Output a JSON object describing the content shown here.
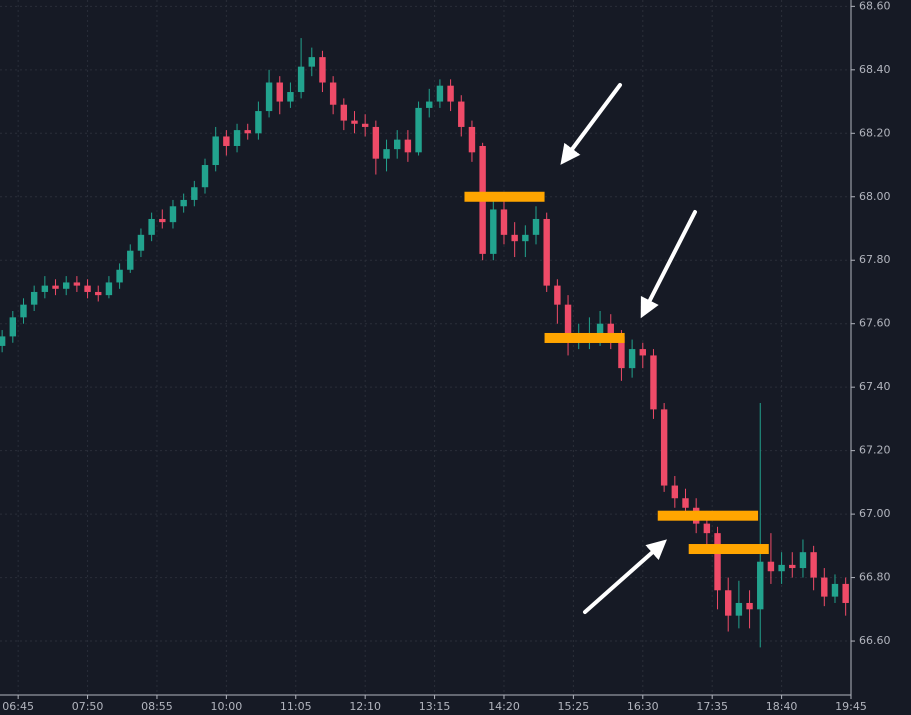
{
  "chart_data": {
    "type": "candlestick",
    "x": [
      "06:30",
      "06:40",
      "06:50",
      "07:00",
      "07:10",
      "07:20",
      "07:30",
      "07:40",
      "07:50",
      "08:00",
      "08:10",
      "08:20",
      "08:30",
      "08:40",
      "08:50",
      "09:00",
      "09:10",
      "09:20",
      "09:30",
      "09:40",
      "09:50",
      "10:00",
      "10:10",
      "10:20",
      "10:30",
      "10:40",
      "10:50",
      "11:00",
      "11:10",
      "11:20",
      "11:30",
      "11:40",
      "11:50",
      "12:00",
      "12:10",
      "12:20",
      "12:30",
      "12:40",
      "12:50",
      "13:00",
      "13:10",
      "13:20",
      "13:30",
      "13:40",
      "13:50",
      "14:00",
      "14:10",
      "14:20",
      "14:30",
      "14:40",
      "14:50",
      "15:00",
      "15:10",
      "15:20",
      "15:30",
      "15:40",
      "15:50",
      "16:00",
      "16:10",
      "16:20",
      "16:30",
      "16:40",
      "16:50",
      "17:00",
      "17:10",
      "17:20",
      "17:30",
      "17:40",
      "17:50",
      "18:00",
      "18:10",
      "18:20",
      "18:30",
      "18:40",
      "18:50",
      "19:00",
      "19:10",
      "19:20",
      "19:30",
      "19:40"
    ],
    "open": [
      67.53,
      67.56,
      67.62,
      67.66,
      67.7,
      67.72,
      67.71,
      67.73,
      67.72,
      67.7,
      67.69,
      67.73,
      67.77,
      67.83,
      67.88,
      67.93,
      67.92,
      67.97,
      67.99,
      68.03,
      68.1,
      68.19,
      68.16,
      68.21,
      68.2,
      68.27,
      68.36,
      68.3,
      68.33,
      68.41,
      68.44,
      68.36,
      68.29,
      68.24,
      68.23,
      68.22,
      68.12,
      68.15,
      68.18,
      68.14,
      68.28,
      68.3,
      68.35,
      68.3,
      68.22,
      68.16,
      67.82,
      67.96,
      67.88,
      67.86,
      67.88,
      67.93,
      67.72,
      67.66,
      67.55,
      67.56,
      67.56,
      67.6,
      67.56,
      67.46,
      67.52,
      67.5,
      67.33,
      67.09,
      67.05,
      67.02,
      66.97,
      66.94,
      66.76,
      66.68,
      66.72,
      66.7,
      66.85,
      66.82,
      66.84,
      66.83,
      66.88,
      66.8,
      66.74,
      66.78
    ],
    "high": [
      67.58,
      67.64,
      67.68,
      67.72,
      67.75,
      67.74,
      67.75,
      67.75,
      67.74,
      67.72,
      67.75,
      67.79,
      67.85,
      67.9,
      67.95,
      67.96,
      67.99,
      68.01,
      68.05,
      68.12,
      68.22,
      68.21,
      68.23,
      68.23,
      68.3,
      68.4,
      68.38,
      68.36,
      68.5,
      68.47,
      68.46,
      68.38,
      68.31,
      68.27,
      68.26,
      68.24,
      68.18,
      68.21,
      68.21,
      68.3,
      68.34,
      68.37,
      68.37,
      68.32,
      68.24,
      68.17,
      68.0,
      67.99,
      67.92,
      67.91,
      67.97,
      67.95,
      67.74,
      67.69,
      67.6,
      67.62,
      67.64,
      67.63,
      67.58,
      67.55,
      67.54,
      67.52,
      67.35,
      67.12,
      67.08,
      67.05,
      67.01,
      66.96,
      66.8,
      66.79,
      66.76,
      67.35,
      66.94,
      66.88,
      66.88,
      66.92,
      66.9,
      66.83,
      66.81,
      66.8
    ],
    "low": [
      67.51,
      67.54,
      67.6,
      67.64,
      67.68,
      67.69,
      67.69,
      67.7,
      67.68,
      67.67,
      67.68,
      67.71,
      67.76,
      67.81,
      67.86,
      67.9,
      67.9,
      67.95,
      67.97,
      68.01,
      68.08,
      68.13,
      68.14,
      68.18,
      68.18,
      68.25,
      68.26,
      68.28,
      68.31,
      68.38,
      68.33,
      68.26,
      68.21,
      68.2,
      68.19,
      68.07,
      68.08,
      68.12,
      68.11,
      68.13,
      68.25,
      68.28,
      68.27,
      68.19,
      68.11,
      67.8,
      67.8,
      67.85,
      67.81,
      67.81,
      67.85,
      67.7,
      67.6,
      67.5,
      67.52,
      67.52,
      67.53,
      67.52,
      67.42,
      67.43,
      67.46,
      67.3,
      67.07,
      67.02,
      66.98,
      66.94,
      66.9,
      66.7,
      66.63,
      66.64,
      66.64,
      66.58,
      66.78,
      66.78,
      66.8,
      66.8,
      66.76,
      66.71,
      66.72,
      66.68
    ],
    "close": [
      67.56,
      67.62,
      67.66,
      67.7,
      67.72,
      67.71,
      67.73,
      67.72,
      67.7,
      67.69,
      67.73,
      67.77,
      67.83,
      67.88,
      67.93,
      67.92,
      67.97,
      67.99,
      68.03,
      68.1,
      68.19,
      68.16,
      68.21,
      68.2,
      68.27,
      68.36,
      68.3,
      68.33,
      68.41,
      68.44,
      68.36,
      68.29,
      68.24,
      68.23,
      68.22,
      68.12,
      68.15,
      68.18,
      68.14,
      68.28,
      68.3,
      68.35,
      68.3,
      68.22,
      68.14,
      67.82,
      67.96,
      67.88,
      67.86,
      67.88,
      67.93,
      67.72,
      67.66,
      67.55,
      67.56,
      67.56,
      67.6,
      67.56,
      67.46,
      67.52,
      67.5,
      67.33,
      67.09,
      67.05,
      67.02,
      66.97,
      66.94,
      66.76,
      66.68,
      66.72,
      66.7,
      66.85,
      66.82,
      66.84,
      66.83,
      66.88,
      66.8,
      66.74,
      66.78,
      66.72
    ],
    "up_color": "#22a38e",
    "down_color": "#ef4b68",
    "levels": [
      {
        "value": 68.0,
        "start": "13:43",
        "end": "14:58"
      },
      {
        "value": 67.555,
        "start": "14:58",
        "end": "16:13"
      },
      {
        "value": 66.995,
        "start": "16:44",
        "end": "18:18"
      },
      {
        "value": 66.89,
        "start": "17:13",
        "end": "18:28"
      }
    ],
    "level_color": "#ffa500",
    "xlim": [
      "06:28",
      "19:45"
    ],
    "xticks": [
      "06:45",
      "07:50",
      "08:55",
      "10:00",
      "11:05",
      "12:10",
      "13:15",
      "14:20",
      "15:25",
      "16:30",
      "17:35",
      "18:40",
      "19:45"
    ],
    "ylim": [
      66.43,
      68.62
    ],
    "yticks": [
      {
        "value": 66.6,
        "label": "66.60"
      },
      {
        "value": 66.8,
        "label": "66.80"
      },
      {
        "value": 67.0,
        "label": "67.00"
      },
      {
        "value": 67.2,
        "label": "67.20"
      },
      {
        "value": 67.4,
        "label": "67.40"
      },
      {
        "value": 67.6,
        "label": "67.60"
      },
      {
        "value": 67.8,
        "label": "67.80"
      },
      {
        "value": 68.0,
        "label": "68.00"
      },
      {
        "value": 68.2,
        "label": "68.20"
      },
      {
        "value": 68.4,
        "label": "68.40"
      },
      {
        "value": 68.6,
        "label": "68.60"
      }
    ],
    "grid": true
  }
}
